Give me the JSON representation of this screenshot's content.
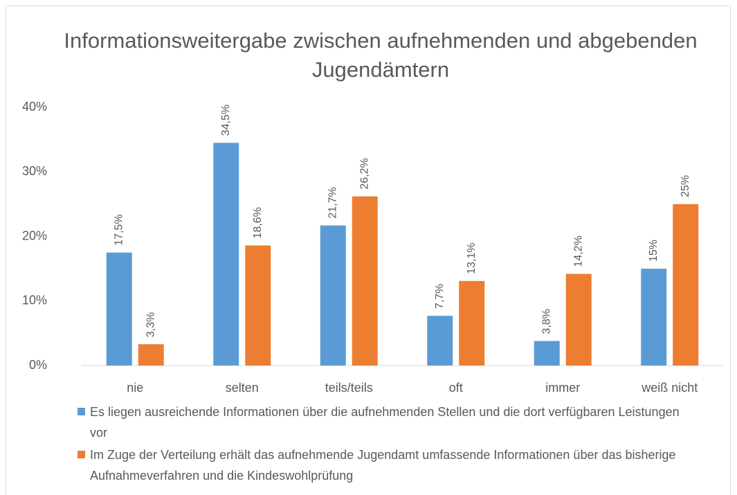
{
  "chart_data": {
    "type": "bar",
    "title": "Informationsweitergabe zwischen aufnehmenden und abgebenden Jugendämtern",
    "categories": [
      "nie",
      "selten",
      "teils/teils",
      "oft",
      "immer",
      "weiß nicht"
    ],
    "series": [
      {
        "name": "Es liegen ausreichende Informationen über die aufnehmenden Stellen und die dort verfügbaren Leistungen vor",
        "color": "#5b9bd5",
        "values": [
          17.5,
          34.5,
          21.7,
          7.7,
          3.8,
          15
        ],
        "value_labels": [
          "17,5%",
          "34,5%",
          "21,7%",
          "7,7%",
          "3,8%",
          "15%"
        ]
      },
      {
        "name": "Im Zuge der Verteilung erhält das aufnehmende Jugendamt umfassende Informationen über das bisherige Aufnahmeverfahren und die Kindeswohlprüfung",
        "color": "#ed7d31",
        "values": [
          3.3,
          18.6,
          26.2,
          13.1,
          14.2,
          25
        ],
        "value_labels": [
          "3,3%",
          "18,6%",
          "26,2%",
          "13,1%",
          "14,2%",
          "25%"
        ]
      }
    ],
    "ylim": [
      0,
      40
    ],
    "yticks": [
      {
        "value": 0,
        "label": "0%"
      },
      {
        "value": 10,
        "label": "10%"
      },
      {
        "value": 20,
        "label": "20%"
      },
      {
        "value": 30,
        "label": "30%"
      },
      {
        "value": 40,
        "label": "40%"
      }
    ],
    "grid": false,
    "legend": "bottom"
  }
}
